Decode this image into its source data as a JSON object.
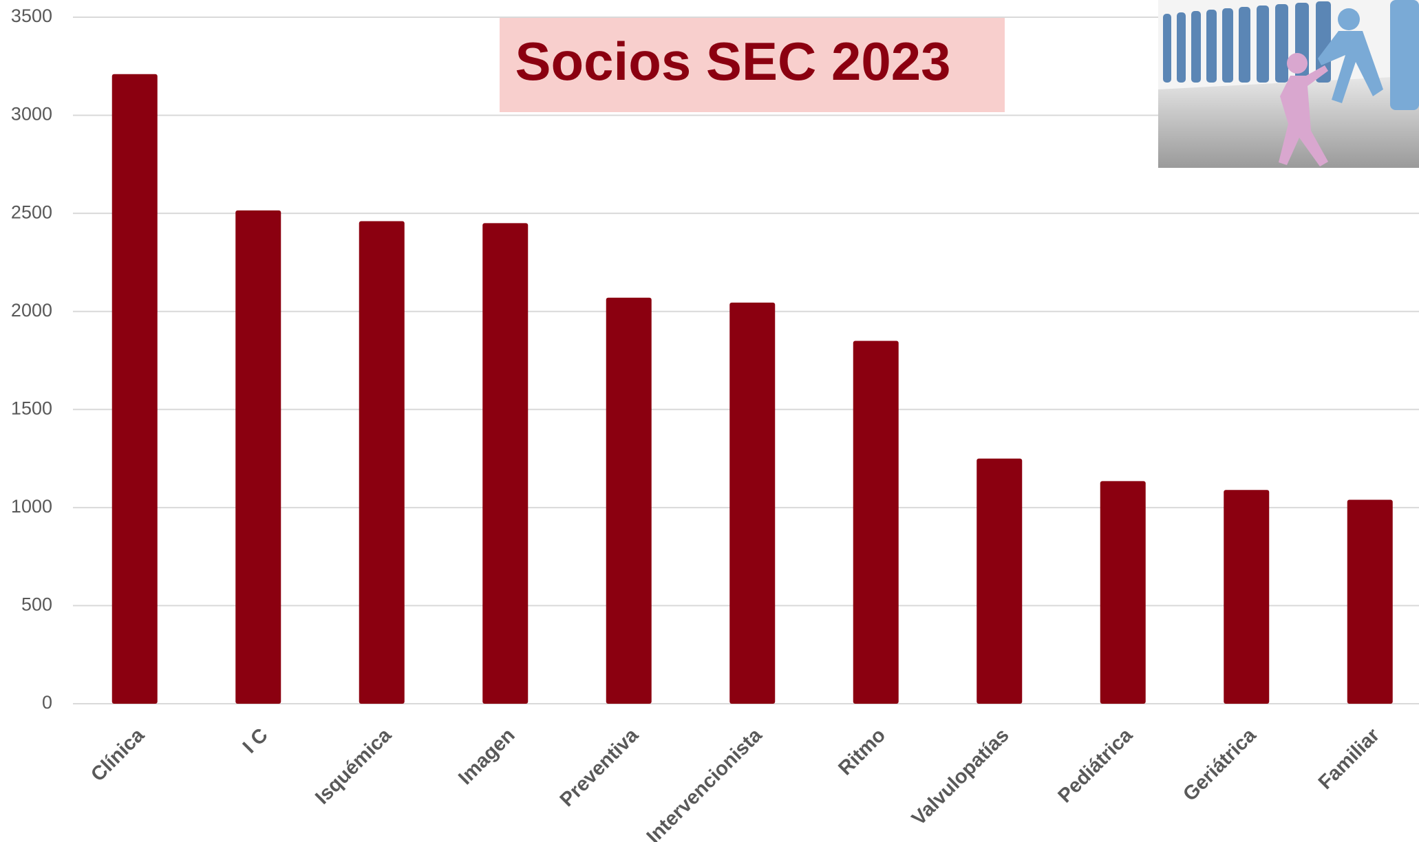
{
  "chart_data": {
    "type": "bar",
    "title": "Socios SEC 2023",
    "categories": [
      "Clínica",
      "I C",
      "Isquémica",
      "Imagen",
      "Preventiva",
      "Intervencionista",
      "Ritmo",
      "Valvulopatías",
      "Pediátrica",
      "Geriátrica",
      "Familiar"
    ],
    "values": [
      3210,
      2515,
      2460,
      2450,
      2070,
      2045,
      1850,
      1250,
      1135,
      1090,
      1040
    ],
    "color": "#8b0010",
    "ylim": [
      0,
      3500
    ],
    "yticks": [
      0,
      500,
      1000,
      1500,
      2000,
      2500,
      3000,
      3500
    ],
    "grid": true
  }
}
